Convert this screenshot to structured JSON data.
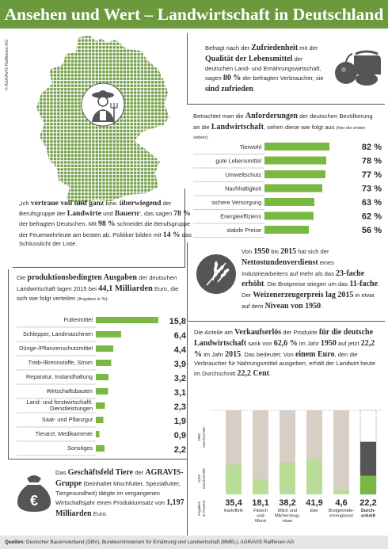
{
  "header": {
    "title": "Ansehen und Wert – Landwirtschaft in Deutschland"
  },
  "copyright": "© AGRAVIS Raiffeisen AG",
  "quote_box": {
    "t1": "„Ich ",
    "t2": "vertraue voll und ganz",
    "t3": " bzw. ",
    "t4": "überwiegend",
    "t5": " der Berufsgruppe der ",
    "t6": "Landwirte",
    "t7": " und ",
    "t8": "Bauern",
    "t9": "“, das sagen ",
    "t10": "78 %",
    "t11": " der befragten Deutschen. Mit ",
    "t12": "98 %",
    "t13": " schneidet die Berufsgruppe der Feuerwehrleute am besten ab. Politiker bilden mit ",
    "t14": "14 %",
    "t15": " das Schlusslicht der Liste."
  },
  "satisfaction_box": {
    "t1": "Befragt nach der ",
    "t2": "Zufriedenheit",
    "t3": " mit der ",
    "t4": "Qualität der Lebensmittel",
    "t5": " der deutschen Land- und Ernährungswirtschaft, sagen ",
    "t6": "80 %",
    "t7": " der befragten Verbraucher, sie ",
    "t8": "sind zufrieden",
    "t9": "."
  },
  "requirements_box": {
    "t1": "Betrachtet man die ",
    "t2": "Anforderungen",
    "t3": " der deutschen Bevölkerung an die ",
    "t4": "Landwirtschaft",
    "t5": ", sehen diese wie folgt aus ",
    "t6": "(hier die ersten sieben):"
  },
  "wheat_box": {
    "t1": "Von ",
    "t2": "1950",
    "t3": " bis ",
    "t4": "2015",
    "t5": " hat sich der ",
    "t6": "Nettostundenverdienst",
    "t7": " eines Industriearbeiters auf mehr als das ",
    "t8": "23-fache erhöht",
    "t9": ". Die Brotpreise stiegen um das ",
    "t10": "11-fache",
    "t11": ". Der ",
    "t12": "Weizenerzeugerpreis lag 2015",
    "t13": " in etwa auf dem ",
    "t14": "Niveau von 1950",
    "t15": "."
  },
  "expenses_box": {
    "t1": "Die ",
    "t2": "produktionsbedingten Ausgaben",
    "t3": " der deutschen Landwirtschaft lagen 2015 bei ",
    "t4": "44,1 Milliarden",
    "t5": " Euro, die sich wie folgt verteilen ",
    "t6": "(Angaben in %):"
  },
  "agravis_box": {
    "t1": "Das ",
    "t2": "Geschäftsfeld Tiere",
    "t3": " der ",
    "t4": "AGRAVIS-Gruppe",
    "t5": " (beinhaltet Mischfutter, Spezialfutter, Tiergesundheit) tätigte im vergangenen Wirtschaftsjahr einen Produktumsatz von ",
    "t6": "1,197 Milliarden",
    "t7": " Euro."
  },
  "share_box": {
    "t1": "Die Anteile am ",
    "t2": "Verkaufserlös",
    "t3": " der Produkte ",
    "t4": "für die deutsche Landwirtschaft",
    "t5": " sank von ",
    "t6": "62,6 %",
    "t7": " im Jahr ",
    "t8": "1950",
    "t9": " auf jetzt ",
    "t10": "22,2 %",
    "t11": " im Jahr ",
    "t12": "2015",
    "t13": ". Das bedeutet: Von ",
    "t14": "einem Euro",
    "t15": ", den die Verbraucher für Nahrungsmittel ausgeben, erhält der Landwirt heute im Durchschnitt ",
    "t16": "22,2 Cent",
    "t17": "."
  },
  "footer": {
    "label": "Quellen:",
    "text": " Deutscher Bauernverband (DBV), Bundesministerium für Ernährung und Landwirtschaft (BMEL), AGRAVIS Raiffeisen AG"
  },
  "colors": {
    "green": "#6b9a3d",
    "bar_green": "#79b843",
    "light_green": "#b9dd97",
    "beige": "#d8cfc4",
    "grey": "#555555"
  },
  "icons": [
    "farmer-icon",
    "food-basket-icon",
    "wheat-icon",
    "money-bag-icon"
  ],
  "chart_data": [
    {
      "type": "bar",
      "orientation": "horizontal",
      "categories": [
        "Tierwohl",
        "gute Lebensmittel",
        "Umweltschutz",
        "Nachhaltigkeit",
        "sichere Versorgung",
        "Energieeffiziens",
        "stabile Preise"
      ],
      "values": [
        82,
        78,
        77,
        73,
        63,
        62,
        56
      ],
      "value_labels": [
        "82 %",
        "78 %",
        "77 %",
        "73 %",
        "63 %",
        "62 %",
        "56 %"
      ],
      "xlim": [
        0,
        100
      ]
    },
    {
      "type": "bar",
      "orientation": "horizontal",
      "categories": [
        "Futtermittel",
        "Schlepper, Landmaschinen",
        "Dünge-/Pflanzenschutzmittel",
        "Treib-/Brennstoffe, Strom",
        "Reparatur, Instandhaltung",
        "Wirtschaftsbauten",
        "Land- und forstwirtschaftl. Dienstleistungen",
        "Saat- und Pflanzgut",
        "Tierarzt, Medikamente",
        "Sonstiges"
      ],
      "values": [
        15.8,
        6.4,
        4.4,
        3.9,
        3.2,
        3.1,
        2.3,
        1.9,
        0.9,
        2.2
      ],
      "value_labels": [
        "15,8",
        "6,4",
        "4,4",
        "3,9",
        "3,2",
        "3,1",
        "2,3",
        "1,9",
        "0,9",
        "2,2"
      ],
      "xlim": [
        0,
        16
      ]
    },
    {
      "type": "bar",
      "stacked": true,
      "categories": [
        "Kartoffeln",
        "Fleisch und Wurst",
        "Milch und Milcherzeugnisse",
        "Eier",
        "Brotgetreideerzeugnisse",
        "Durchschnitt"
      ],
      "display_categories": [
        "Kartoffeln",
        "Fleisch\nund\nWurst",
        "Milch und\nMilcherzeug-\nnisse",
        "Eier",
        "Brotgetreide-\nerzeugnisse",
        "Durch-\nschnitt"
      ],
      "series": [
        {
          "name": "1950",
          "values": [
            null,
            null,
            null,
            null,
            null,
            62.6
          ]
        },
        {
          "name": "2015",
          "values": [
            35.4,
            18.1,
            38.2,
            41.9,
            4.6,
            22.2
          ]
        }
      ],
      "row_labels": [
        "1950\nDurchschnitt",
        "2015\nDurchschnitt",
        "Angaben\nin Prozent"
      ],
      "value_labels": [
        "35,4",
        "18,1",
        "38,2",
        "41,9",
        "4,6",
        "22,2"
      ],
      "ylim": [
        0,
        100
      ]
    }
  ]
}
